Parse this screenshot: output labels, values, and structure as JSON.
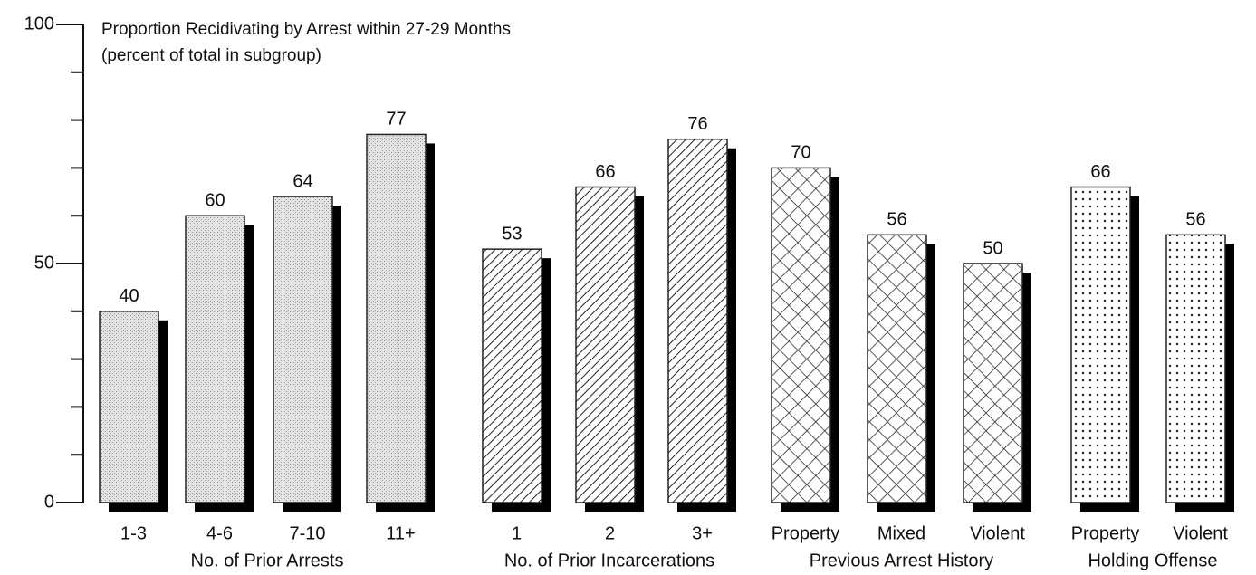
{
  "chart_data": {
    "type": "bar",
    "title": "Proportion Recidivating by Arrest within 27-29 Months",
    "subtitle": "(percent of total in subgroup)",
    "ylim": [
      0,
      100
    ],
    "yticks": [
      0,
      50,
      100
    ],
    "minor_yticks": [
      10,
      20,
      30,
      40,
      60,
      70,
      80,
      90
    ],
    "groups": [
      {
        "label": "No. of Prior Arrests",
        "pattern": "stipple",
        "categories": [
          "1-3",
          "4-6",
          "7-10",
          "11+"
        ],
        "values": [
          40,
          60,
          64,
          77
        ]
      },
      {
        "label": "No. of Prior Incarcerations",
        "pattern": "hatch",
        "categories": [
          "1",
          "2",
          "3+"
        ],
        "values": [
          53,
          66,
          76
        ]
      },
      {
        "label": "Previous Arrest History",
        "pattern": "cross",
        "categories": [
          "Property",
          "Mixed",
          "Violent"
        ],
        "values": [
          70,
          56,
          50
        ]
      },
      {
        "label": "Holding Offense",
        "pattern": "dots",
        "categories": [
          "Property",
          "Violent"
        ],
        "values": [
          66,
          56
        ]
      }
    ]
  }
}
